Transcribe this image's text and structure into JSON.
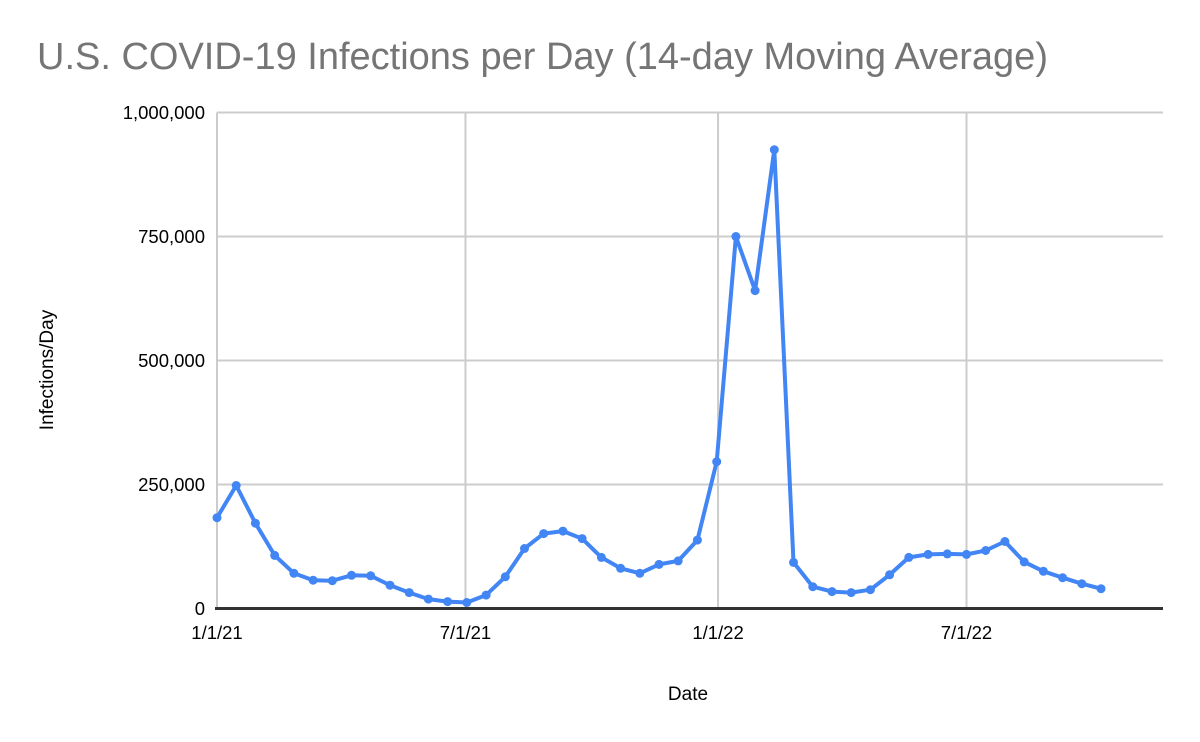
{
  "colors": {
    "line": "#4285f4",
    "marker": "#4285f4",
    "title_text": "#757575",
    "tick_text": "#000000",
    "axis_title_text": "#000000",
    "gridline": "#cccccc",
    "axis_line": "#333333",
    "background": "#ffffff"
  },
  "chart_data": {
    "type": "line",
    "title": "U.S. COVID-19 Infections per Day (14-day Moving Average)",
    "xlabel": "Date",
    "ylabel": "Infections/Day",
    "legend": "none",
    "grid": true,
    "ylim": [
      0,
      1000000
    ],
    "y_tick_values": [
      0,
      250000,
      500000,
      750000,
      1000000
    ],
    "y_tick_labels": [
      "0",
      "250,000",
      "500,000",
      "750,000",
      "1,000,000"
    ],
    "x_tick_labels": [
      "1/1/21",
      "7/1/21",
      "1/1/22",
      "7/1/22"
    ],
    "series": [
      {
        "name": "Infections/Day",
        "x": [
          "1/1/21",
          "1/15/21",
          "1/29/21",
          "2/12/21",
          "2/26/21",
          "3/12/21",
          "3/26/21",
          "4/9/21",
          "4/23/21",
          "5/7/21",
          "5/21/21",
          "6/4/21",
          "6/18/21",
          "7/2/21",
          "7/16/21",
          "7/30/21",
          "8/13/21",
          "8/27/21",
          "9/10/21",
          "9/24/21",
          "10/8/21",
          "10/22/21",
          "11/5/21",
          "11/19/21",
          "12/3/21",
          "12/17/21",
          "12/31/21",
          "1/14/22",
          "1/28/22",
          "2/11/22",
          "2/25/22",
          "3/11/22",
          "3/25/22",
          "4/8/22",
          "4/22/22",
          "5/6/22",
          "5/20/22",
          "6/3/22",
          "6/17/22",
          "7/1/22",
          "7/15/22",
          "7/29/22",
          "8/12/22",
          "8/26/22",
          "9/9/22",
          "9/23/22",
          "10/7/22"
        ],
        "values": [
          183000,
          248000,
          172000,
          107000,
          71000,
          57000,
          56000,
          67000,
          66000,
          47000,
          32000,
          19000,
          14000,
          12000,
          27000,
          64000,
          121000,
          151000,
          156000,
          141000,
          103000,
          81000,
          71000,
          89000,
          96000,
          138000,
          296000,
          750000,
          641000,
          925000,
          93000,
          44000,
          34000,
          32000,
          38000,
          68000,
          103000,
          109000,
          110000,
          109000,
          117000,
          135000,
          94000,
          75000,
          62000,
          50000,
          40000
        ]
      }
    ]
  }
}
